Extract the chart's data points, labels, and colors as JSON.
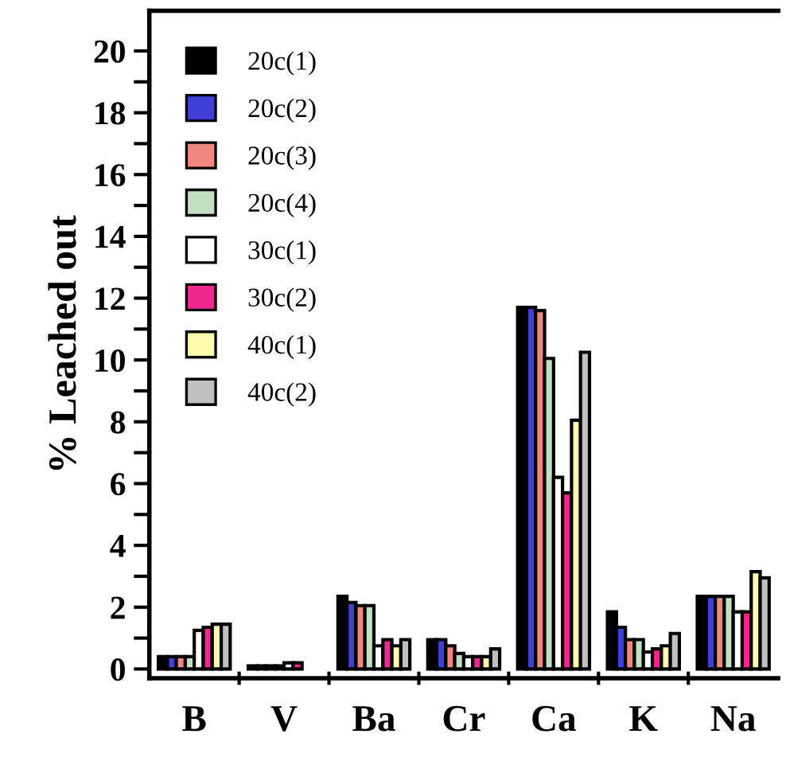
{
  "chart_data": {
    "type": "bar",
    "ylabel": "% Leached out",
    "categories": [
      "B",
      "V",
      "Ba",
      "Cr",
      "Ca",
      "K",
      "Na"
    ],
    "series": [
      {
        "name": "20c(1)",
        "color": "#000000",
        "values": [
          0.4,
          0.1,
          2.35,
          0.95,
          11.7,
          1.85,
          2.35
        ]
      },
      {
        "name": "20c(2)",
        "color": "#4040d8",
        "values": [
          0.4,
          0.1,
          2.15,
          0.95,
          11.7,
          1.35,
          2.35
        ]
      },
      {
        "name": "20c(3)",
        "color": "#f08880",
        "values": [
          0.4,
          0.1,
          2.05,
          0.75,
          11.6,
          0.95,
          2.35
        ]
      },
      {
        "name": "20c(4)",
        "color": "#c4e0c4",
        "values": [
          0.4,
          0.1,
          2.05,
          0.5,
          10.05,
          0.95,
          2.35
        ]
      },
      {
        "name": "30c(1)",
        "color": "#ffffff",
        "values": [
          1.25,
          0.2,
          0.75,
          0.4,
          6.2,
          0.55,
          1.85
        ]
      },
      {
        "name": "30c(2)",
        "color": "#f02890",
        "values": [
          1.35,
          0.2,
          0.95,
          0.4,
          5.7,
          0.65,
          1.85
        ]
      },
      {
        "name": "40c(1)",
        "color": "#fffcb0",
        "values": [
          1.45,
          null,
          0.75,
          0.4,
          8.05,
          0.75,
          3.15
        ]
      },
      {
        "name": "40c(2)",
        "color": "#c0c0c0",
        "values": [
          1.45,
          null,
          0.95,
          0.65,
          10.25,
          1.15,
          2.95
        ]
      }
    ],
    "ylim": [
      -0.3,
      21.3
    ],
    "yticks": [
      0,
      {
        "value": 1,
        "label": null
      },
      2,
      {
        "value": 3,
        "label": null
      },
      4,
      {
        "value": 5,
        "label": null
      },
      6,
      {
        "value": 7,
        "label": null
      },
      8,
      {
        "value": 9,
        "label": null
      },
      10,
      {
        "value": 11,
        "label": null
      },
      12,
      {
        "value": 13,
        "label": null
      },
      14,
      {
        "value": 15,
        "label": null
      },
      16,
      {
        "value": 17,
        "label": null
      },
      18,
      {
        "value": 19,
        "label": null
      },
      20
    ],
    "legend": "top left"
  }
}
